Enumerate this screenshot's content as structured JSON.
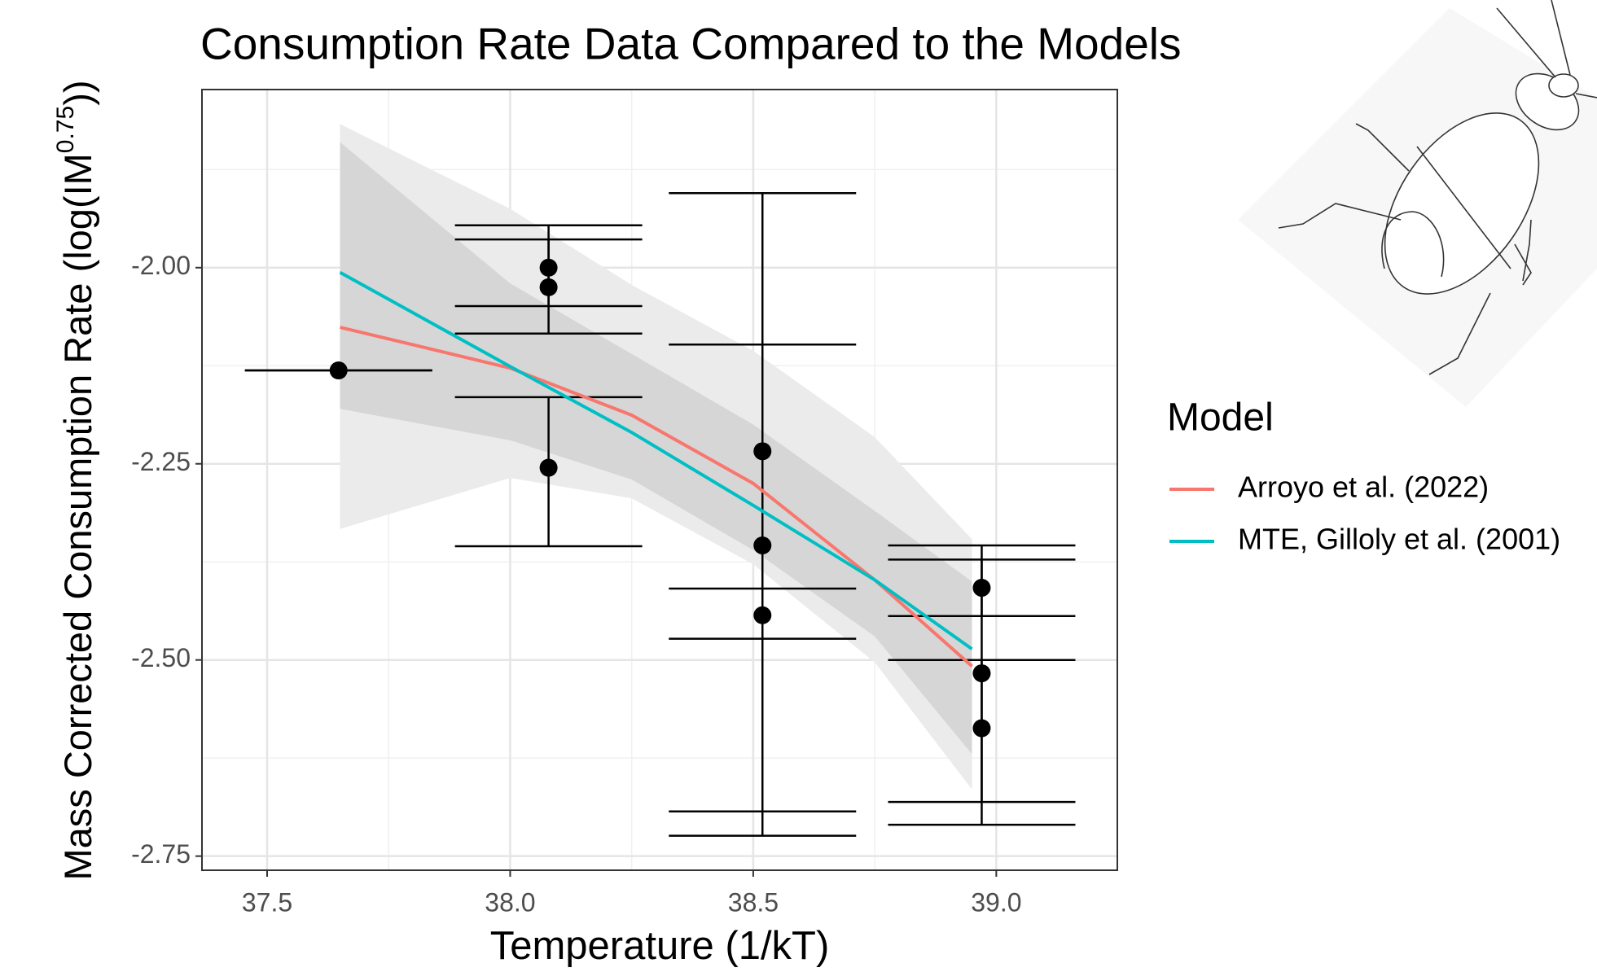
{
  "chart_data": {
    "type": "line",
    "title": "Consumption Rate Data Compared to the Models",
    "x_label": "Temperature (1/kT)",
    "y_label": "Mass Corrected Consumption Rate (log(IM",
    "y_label_sup": "0.75",
    "y_label_end": "))",
    "xlim": [
      37.366,
      39.249
    ],
    "ylim": [
      -2.768,
      -1.773
    ],
    "xticks": [
      37.5,
      {
        "value": 38,
        "label": "38.0"
      },
      38.5,
      {
        "value": 39,
        "label": "39.0"
      }
    ],
    "yticks": [
      {
        "value": -2,
        "label": "-2.00"
      },
      -2.25,
      {
        "value": -2.5,
        "label": "-2.50"
      },
      -2.75
    ],
    "xminor": [
      37.75,
      38.25,
      38.75
    ],
    "yminor": [
      -1.875,
      -2.125,
      -2.375,
      -2.625
    ],
    "grid": true,
    "legend_title": "Model",
    "legend_position": "right",
    "bands": [
      {
        "color": "#ebebeb",
        "x": [
          37.65,
          38.0,
          38.25,
          38.5,
          38.75,
          38.95
        ],
        "upper": [
          -1.817,
          -1.925,
          -2.022,
          -2.106,
          -2.216,
          -2.346
        ],
        "lower": [
          -2.333,
          -2.268,
          -2.294,
          -2.378,
          -2.503,
          -2.665
        ]
      },
      {
        "color": "#d6d6d6",
        "x": [
          37.65,
          38.0,
          38.25,
          38.5,
          38.75,
          38.95
        ],
        "upper": [
          -1.84,
          -2.02,
          -2.11,
          -2.2,
          -2.31,
          -2.4
        ],
        "lower": [
          -2.18,
          -2.22,
          -2.27,
          -2.36,
          -2.47,
          -2.62
        ]
      }
    ],
    "series": [
      {
        "name": "Arroyo et al. (2022)",
        "color": "#F8766D",
        "x": [
          37.65,
          38.0,
          38.25,
          38.5,
          38.75,
          38.95
        ],
        "values": [
          -2.076,
          -2.128,
          -2.188,
          -2.275,
          -2.398,
          -2.508
        ]
      },
      {
        "name": "MTE, Gilloly et al. (2001)",
        "color": "#00BFC4",
        "x": [
          37.65,
          38.0,
          38.25,
          38.5,
          38.75,
          38.95
        ],
        "values": [
          -2.006,
          -2.126,
          -2.21,
          -2.303,
          -2.398,
          -2.486
        ]
      }
    ],
    "points": {
      "color": "#000000",
      "x": [
        37.647,
        38.079,
        38.079,
        38.079,
        38.519,
        38.519,
        38.519,
        38.97,
        38.97,
        38.97
      ],
      "y": [
        -2.131,
        -2.0,
        -2.025,
        -2.255,
        -2.234,
        -2.354,
        -2.443,
        -2.408,
        -2.517,
        -2.587
      ],
      "ymin": [
        -2.131,
        -2.049,
        -2.084,
        -2.355,
        -2.693,
        -2.724,
        -2.473,
        -2.444,
        -2.681,
        -2.71
      ],
      "ymax": [
        -2.131,
        -1.946,
        -1.964,
        -2.165,
        -1.905,
        -2.098,
        -2.409,
        -2.354,
        -2.372,
        -2.5
      ]
    }
  }
}
